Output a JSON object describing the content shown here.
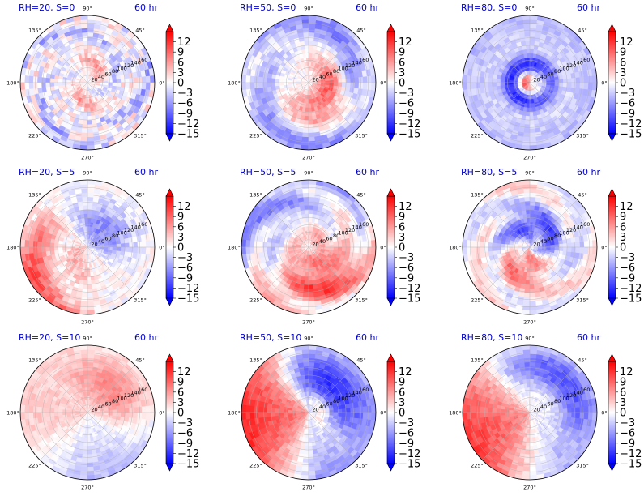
{
  "chart_data": {
    "type": "polar-contour-grid",
    "colormap": {
      "name": "bwr",
      "low": "#0000ff",
      "mid": "#ffffff",
      "high": "#ff0000"
    },
    "vlim": [
      -15,
      15
    ],
    "colorbar_ticks": [
      "12",
      "9",
      "6",
      "3",
      "0",
      "−3",
      "−6",
      "−9",
      "−12",
      "−15"
    ],
    "colorbar_tick_values": [
      12,
      9,
      6,
      3,
      0,
      -3,
      -6,
      -9,
      -12,
      -15
    ],
    "angle_labels": [
      "0°",
      "45°",
      "90°",
      "135°",
      "180°",
      "225°",
      "270°",
      "315°"
    ],
    "angle_values": [
      0,
      45,
      90,
      135,
      180,
      225,
      270,
      315
    ],
    "radial_labels": [
      "20",
      "40",
      "60",
      "80",
      "100",
      "120",
      "140",
      "160"
    ],
    "radial_values": [
      20,
      40,
      60,
      80,
      100,
      120,
      140,
      160
    ],
    "rmax": 180,
    "panels": [
      {
        "title": "RH=20, S=0",
        "time": "60 hr",
        "pattern": "mixed"
      },
      {
        "title": "RH=50, S=0",
        "time": "60 hr",
        "pattern": "core-spiral"
      },
      {
        "title": "RH=80, S=0",
        "time": "60 hr",
        "pattern": "ring"
      },
      {
        "title": "RH=20, S=5",
        "time": "60 hr",
        "pattern": "west-half"
      },
      {
        "title": "RH=50, S=5",
        "time": "60 hr",
        "pattern": "south-spiral"
      },
      {
        "title": "RH=80, S=5",
        "time": "60 hr",
        "pattern": "ring-south"
      },
      {
        "title": "RH=20, S=10",
        "time": "60 hr",
        "pattern": "weak-east"
      },
      {
        "title": "RH=50, S=10",
        "time": "60 hr",
        "pattern": "strong-west"
      },
      {
        "title": "RH=80, S=10",
        "time": "60 hr",
        "pattern": "strong-west-b"
      }
    ]
  }
}
